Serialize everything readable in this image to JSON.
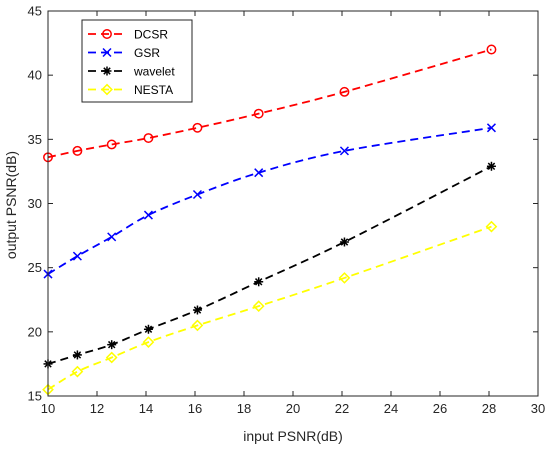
{
  "chart_data": {
    "type": "line",
    "xlabel": "input PSNR(dB)",
    "ylabel": "output PSNR(dB)",
    "xlim": [
      10,
      30
    ],
    "ylim": [
      15,
      45
    ],
    "xticks": [
      10,
      12,
      14,
      16,
      18,
      20,
      22,
      24,
      26,
      28,
      30
    ],
    "yticks": [
      15,
      20,
      25,
      30,
      35,
      40,
      45
    ],
    "grid": false,
    "legend_position": "top-left",
    "series": [
      {
        "name": "DCSR",
        "color": "#ff0000",
        "marker": "circle",
        "x": [
          10,
          11.2,
          12.6,
          14.1,
          16.1,
          18.6,
          22.1,
          28.1
        ],
        "y": [
          33.6,
          34.1,
          34.6,
          35.1,
          35.9,
          37.0,
          38.7,
          42.0
        ]
      },
      {
        "name": "GSR",
        "color": "#0000ff",
        "marker": "cross",
        "x": [
          10,
          11.2,
          12.6,
          14.1,
          16.1,
          18.6,
          22.1,
          28.1
        ],
        "y": [
          24.5,
          25.9,
          27.4,
          29.1,
          30.7,
          32.4,
          34.1,
          35.9
        ]
      },
      {
        "name": "wavelet",
        "color": "#000000",
        "marker": "star",
        "x": [
          10,
          11.2,
          12.6,
          14.1,
          16.1,
          18.6,
          22.1,
          28.1
        ],
        "y": [
          17.5,
          18.2,
          19.0,
          20.2,
          21.7,
          23.9,
          27.0,
          32.9
        ]
      },
      {
        "name": "NESTA",
        "color": "#ffff00",
        "marker": "diamond",
        "x": [
          10,
          11.2,
          12.6,
          14.1,
          16.1,
          18.6,
          22.1,
          28.1
        ],
        "y": [
          15.5,
          16.9,
          18.0,
          19.2,
          20.5,
          22.0,
          24.2,
          28.2
        ]
      }
    ]
  }
}
